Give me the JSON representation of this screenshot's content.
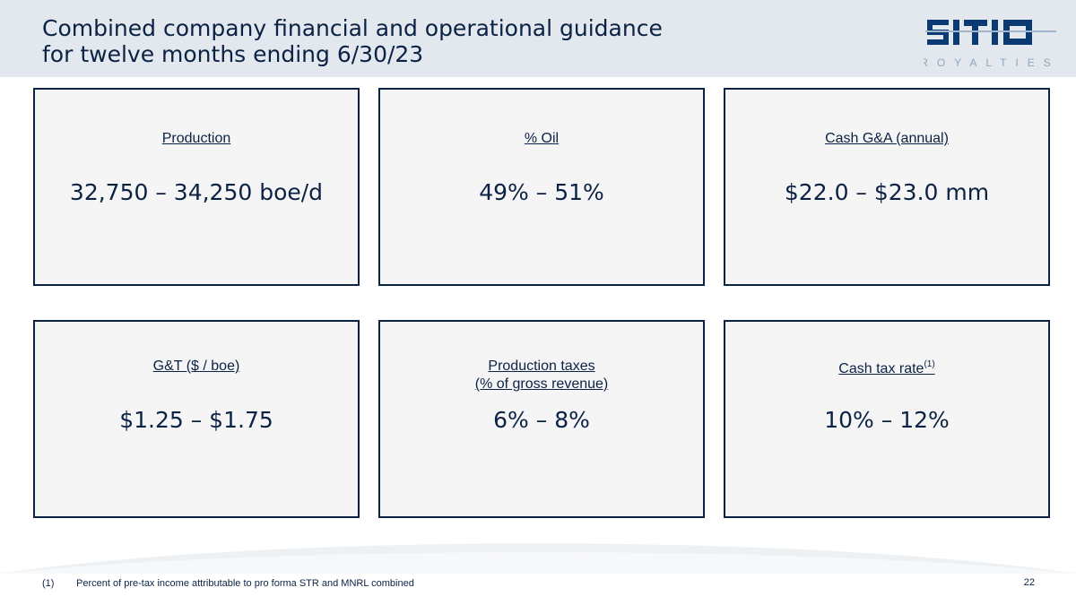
{
  "header": {
    "title_line1": "Combined company financial and operational guidance",
    "title_line2": "for twelve months ending 6/30/23"
  },
  "logo": {
    "name": "SITIO",
    "tagline": "ROYALTIES",
    "primary_color": "#0b3a73",
    "accent_color": "#9fb6cc"
  },
  "cards": [
    {
      "label": "Production",
      "value": "32,750 – 34,250 boe/d"
    },
    {
      "label": "% Oil",
      "value": "49% – 51%"
    },
    {
      "label": "Cash G&A (annual)",
      "value": "$22.0 – $23.0 mm"
    },
    {
      "label": "G&T ($ / boe)",
      "value": "$1.25 – $1.75"
    },
    {
      "label_line1": "Production taxes",
      "label_line2": "(% of gross revenue)",
      "value": "6% – 8%"
    },
    {
      "label": "Cash tax rate",
      "label_sup": "(1)",
      "value": "10% – 12%"
    }
  ],
  "footnote": {
    "number": "(1)",
    "text": "Percent of pre-tax income attributable to pro forma STR and MNRL combined"
  },
  "page_number": "22",
  "colors": {
    "navy": "#0b2245",
    "header_bg": "#e2e8ee",
    "card_bg": "#f5f5f5"
  }
}
